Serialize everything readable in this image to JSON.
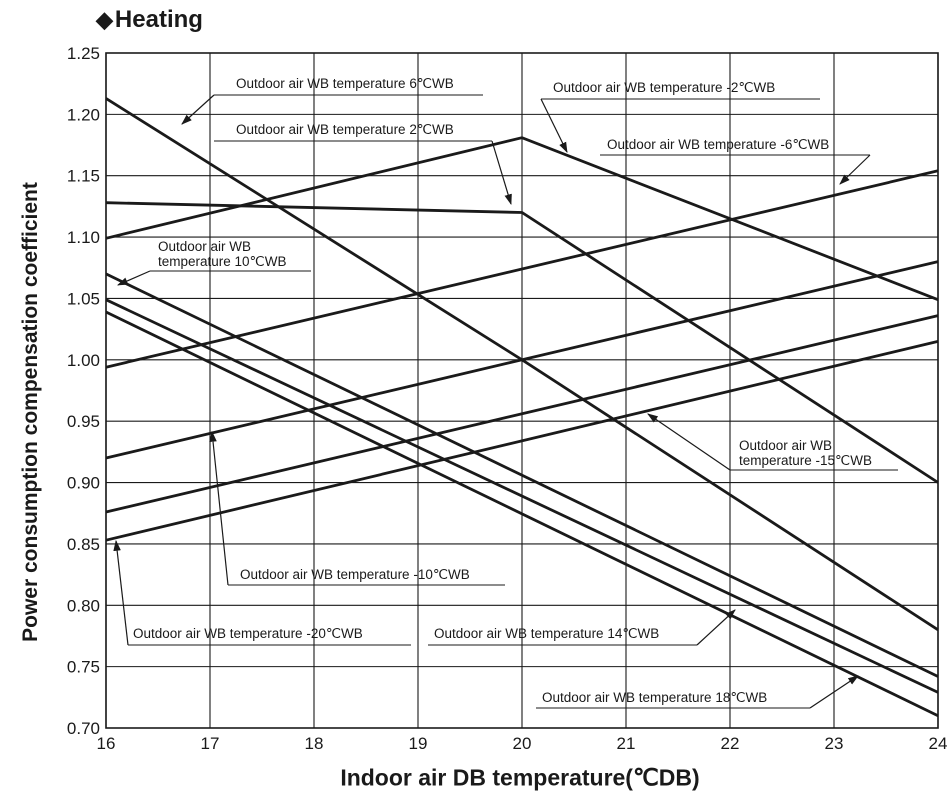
{
  "chart_data": {
    "type": "line",
    "title": "Heating",
    "title_marker": "◆",
    "xlabel": "Indoor air DB temperature(℃DB)",
    "ylabel": "Power consumption compensation coefficient",
    "xlim": [
      16,
      24
    ],
    "ylim": [
      0.7,
      1.25
    ],
    "xticks": [
      "16",
      "17",
      "18",
      "19",
      "20",
      "21",
      "22",
      "23",
      "24"
    ],
    "yticks": [
      "0.70",
      "0.75",
      "0.80",
      "0.85",
      "0.90",
      "0.95",
      "1.00",
      "1.05",
      "1.10",
      "1.15",
      "1.20",
      "1.25"
    ],
    "grid": true,
    "legend": "none (series identified by callout annotations)",
    "line_color": "#1a1a1a",
    "series": [
      {
        "name": "Outdoor air WB temperature 6℃WB",
        "x": [
          16,
          20,
          24
        ],
        "y": [
          1.213,
          1.0,
          0.78
        ]
      },
      {
        "name": "Outdoor air WB temperature 2℃WB",
        "x": [
          16,
          20,
          24
        ],
        "y": [
          1.128,
          1.12,
          0.9
        ]
      },
      {
        "name": "Outdoor air WB temperature -2℃WB",
        "x": [
          16,
          20,
          24
        ],
        "y": [
          1.099,
          1.181,
          1.049
        ]
      },
      {
        "name": "Outdoor air WB temperature -6℃WB",
        "x": [
          16,
          24
        ],
        "y": [
          0.994,
          1.154
        ]
      },
      {
        "name": "Outdoor air WB temperature -10℃WB",
        "x": [
          16,
          24
        ],
        "y": [
          0.92,
          1.08
        ]
      },
      {
        "name": "Outdoor air WB temperature -15℃WB",
        "x": [
          16,
          24
        ],
        "y": [
          0.876,
          1.036
        ]
      },
      {
        "name": "Outdoor air WB temperature -20℃WB",
        "x": [
          16,
          24
        ],
        "y": [
          0.853,
          1.015
        ]
      },
      {
        "name": "Outdoor air WB temperature 10℃WB",
        "x": [
          16,
          24
        ],
        "y": [
          1.07,
          0.742
        ]
      },
      {
        "name": "Outdoor air WB temperature 14℃WB",
        "x": [
          16,
          24
        ],
        "y": [
          1.049,
          0.729
        ]
      },
      {
        "name": "Outdoor air WB temperature 18℃WB",
        "x": [
          16,
          24
        ],
        "y": [
          1.039,
          0.71
        ]
      }
    ],
    "annotations": [
      {
        "id": "a6",
        "lines": [
          "Outdoor air WB temperature 6℃WB"
        ],
        "series": 0
      },
      {
        "id": "a2",
        "lines": [
          "Outdoor air WB temperature 2℃WB"
        ],
        "series": 1
      },
      {
        "id": "am2",
        "lines": [
          "Outdoor air WB temperature -2℃WB"
        ],
        "series": 2
      },
      {
        "id": "am6",
        "lines": [
          "Outdoor air WB temperature -6℃WB"
        ],
        "series": 3
      },
      {
        "id": "a10",
        "lines": [
          "Outdoor air WB",
          "temperature 10℃WB"
        ],
        "series": 7
      },
      {
        "id": "am15",
        "lines": [
          "Outdoor air WB",
          "temperature -15℃WB"
        ],
        "series": 5
      },
      {
        "id": "am10",
        "lines": [
          "Outdoor air WB temperature -10℃WB"
        ],
        "series": 4
      },
      {
        "id": "am20",
        "lines": [
          "Outdoor air WB temperature -20℃WB"
        ],
        "series": 6
      },
      {
        "id": "a14",
        "lines": [
          "Outdoor air WB temperature 14℃WB"
        ],
        "series": 8
      },
      {
        "id": "a18",
        "lines": [
          "Outdoor air WB temperature 18℃WB"
        ],
        "series": 9
      }
    ]
  }
}
